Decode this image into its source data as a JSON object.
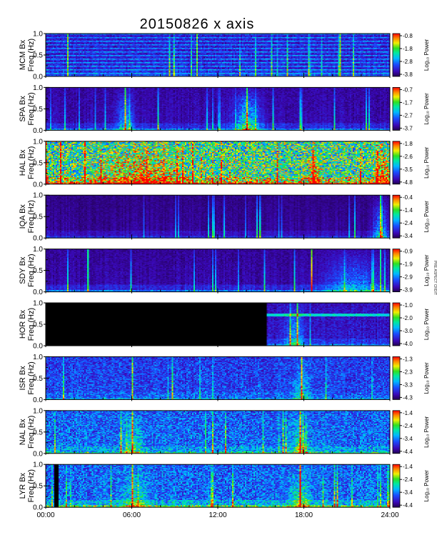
{
  "title": "20150826 x axis",
  "side_note": "PRE ASPECT CRDIT",
  "x_ticks": [
    "00:00",
    "06:00",
    "12:00",
    "18:00",
    "24:00"
  ],
  "y_ticks": [
    "0.0",
    "0.5",
    "1.0"
  ],
  "colorbar_label": "Log₁₀ Power",
  "chart_data": [
    {
      "type": "heatmap",
      "station": "MCM",
      "ylabel": "MCM Bx",
      "ylabel2": "Freq (Hz)",
      "xlim": [
        0,
        24
      ],
      "ylim": [
        0,
        1
      ],
      "colorbar_ticks": [
        "-0.8",
        "-1.8",
        "-2.8",
        "-3.8"
      ],
      "grid": false,
      "features": {
        "base": 0.15,
        "floor": 0.1,
        "harmonics": true,
        "lines": [
          1.5,
          10.5,
          20.5
        ],
        "gap": null,
        "hot": [
          [
            13.5,
            0.06,
            0.35
          ]
        ]
      }
    },
    {
      "type": "heatmap",
      "station": "SPA",
      "ylabel": "SPA Bx",
      "ylabel2": "Freq (Hz)",
      "xlim": [
        0,
        24
      ],
      "ylim": [
        0,
        1
      ],
      "colorbar_ticks": [
        "-0.7",
        "-1.7",
        "-2.7",
        "-3.7"
      ],
      "grid": false,
      "features": {
        "base": 0.08,
        "floor": 0.25,
        "harmonics": false,
        "lines": [
          5.5,
          14.0
        ],
        "gap": null,
        "hot": [
          [
            14.0,
            0.8,
            0.45
          ],
          [
            5.5,
            0.6,
            0.3
          ]
        ]
      }
    },
    {
      "type": "heatmap",
      "station": "HAL",
      "ylabel": "HAL Bx",
      "ylabel2": "Freq (Hz)",
      "xlim": [
        0,
        24
      ],
      "ylim": [
        0,
        1
      ],
      "colorbar_ticks": [
        "-1.8",
        "-2.6",
        "-3.5",
        "-4.8"
      ],
      "grid": false,
      "features": {
        "base": 0.55,
        "floor": 0.45,
        "harmonics": false,
        "lines": [
          1.0,
          2.7
        ],
        "gap": null,
        "hot": [
          [
            6.5,
            2.5,
            0.3
          ],
          [
            18.7,
            0.4,
            0.3
          ],
          [
            23.5,
            0.5,
            0.35
          ]
        ]
      }
    },
    {
      "type": "heatmap",
      "station": "IQA",
      "ylabel": "IQA Bx",
      "ylabel2": "Freq (Hz)",
      "xlim": [
        0,
        24
      ],
      "ylim": [
        0,
        1
      ],
      "colorbar_ticks": [
        "-0.4",
        "-1.4",
        "-2.4",
        "-3.4"
      ],
      "grid": false,
      "features": {
        "base": 0.05,
        "floor": 0.15,
        "harmonics": false,
        "lines": [
          23.3
        ],
        "gap": null,
        "hot": [
          [
            23.3,
            0.5,
            0.35
          ]
        ]
      }
    },
    {
      "type": "heatmap",
      "station": "SDY",
      "ylabel": "SDY Bx",
      "ylabel2": "Freq (Hz)",
      "xlim": [
        0,
        24
      ],
      "ylim": [
        0,
        1
      ],
      "colorbar_ticks": [
        "-0.9",
        "-1.9",
        "-2.9",
        "-3.9"
      ],
      "grid": false,
      "features": {
        "base": 0.07,
        "floor": 0.25,
        "harmonics": false,
        "lines": [
          2.9,
          18.5,
          23.3
        ],
        "gap": null,
        "hot": [
          [
            21.5,
            2.0,
            0.25
          ]
        ]
      }
    },
    {
      "type": "heatmap",
      "station": "HOR",
      "ylabel": "HOR Bx",
      "ylabel2": "Freq (Hz)",
      "xlim": [
        0,
        24
      ],
      "ylim": [
        0,
        1
      ],
      "colorbar_ticks": [
        "-1.0",
        "-2.0",
        "-3.0",
        "-4.0"
      ],
      "grid": false,
      "features": {
        "base": 0.12,
        "floor": 0.2,
        "harmonics": false,
        "lines": [
          17.5
        ],
        "gap": [
          0,
          15.4
        ],
        "hot": [
          [
            17.3,
            0.6,
            0.3
          ]
        ]
      }
    },
    {
      "type": "heatmap",
      "station": "ISR",
      "ylabel": "ISR Bx",
      "ylabel2": "Freq (Hz)",
      "xlim": [
        0,
        24
      ],
      "ylim": [
        0,
        1
      ],
      "colorbar_ticks": [
        "-1.3",
        "-2.3",
        "-3.3",
        "-4.3"
      ],
      "grid": false,
      "features": {
        "base": 0.22,
        "floor": 0.15,
        "harmonics": false,
        "lines": [
          6.0,
          17.8
        ],
        "gap": null,
        "hot": [
          [
            17.8,
            0.5,
            0.25
          ]
        ]
      }
    },
    {
      "type": "heatmap",
      "station": "NAL",
      "ylabel": "NAL Bx",
      "ylabel2": "Freq (Hz)",
      "xlim": [
        0,
        24
      ],
      "ylim": [
        0,
        1
      ],
      "colorbar_ticks": [
        "-1.4",
        "-2.4",
        "-3.4",
        "-4.4"
      ],
      "grid": false,
      "features": {
        "base": 0.28,
        "floor": 0.25,
        "harmonics": false,
        "lines": [
          6.0,
          17.7
        ],
        "gap": null,
        "hot": [
          [
            17.7,
            0.6,
            0.3
          ],
          [
            6.0,
            0.6,
            0.25
          ]
        ]
      }
    },
    {
      "type": "heatmap",
      "station": "LYR",
      "ylabel": "LYR Bx",
      "ylabel2": "Freq (Hz)",
      "xlim": [
        0,
        24
      ],
      "ylim": [
        0,
        1
      ],
      "colorbar_ticks": [
        "-1.4",
        "-2.4",
        "-3.4",
        "-4.4"
      ],
      "grid": false,
      "features": {
        "base": 0.28,
        "floor": 0.35,
        "harmonics": false,
        "lines": [
          6.0,
          17.7
        ],
        "gap": [
          0.55,
          0.85
        ],
        "hot": [
          [
            17.7,
            0.7,
            0.3
          ],
          [
            6.2,
            0.8,
            0.25
          ]
        ]
      }
    }
  ]
}
